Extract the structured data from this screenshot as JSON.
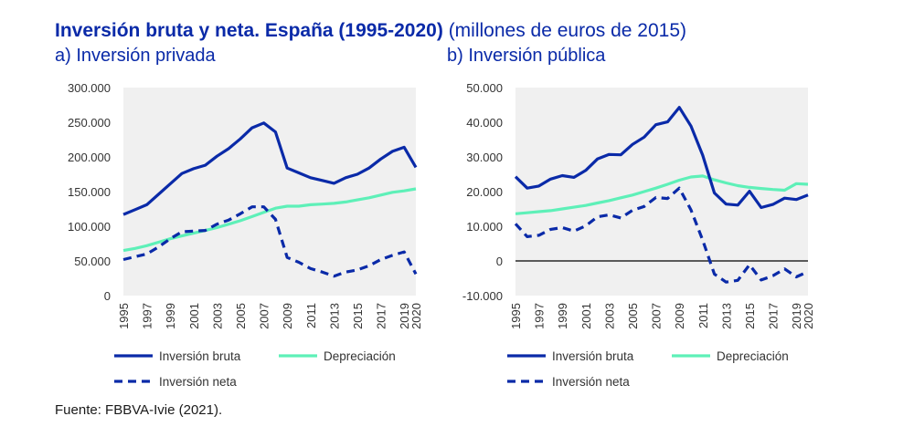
{
  "header": {
    "title": "Inversión bruta y neta. España (1995-2020)",
    "units": "(millones de euros de 2015)"
  },
  "source": "Fuente: FBBVA-Ivie (2021).",
  "colors": {
    "gross": "#0a2aa8",
    "depreciation": "#5ef0b8",
    "net": "#0a2aa8",
    "title": "#0a2aa8",
    "plot_bg": "#f0f0f0"
  },
  "chart_data": [
    {
      "type": "line",
      "subtitle": "a) Inversión privada",
      "x": [
        1995,
        1996,
        1997,
        1998,
        1999,
        2000,
        2001,
        2002,
        2003,
        2004,
        2005,
        2006,
        2007,
        2008,
        2009,
        2010,
        2011,
        2012,
        2013,
        2014,
        2015,
        2016,
        2017,
        2018,
        2019,
        2020
      ],
      "xticks": [
        "1995",
        "1997",
        "1999",
        "2001",
        "2003",
        "2005",
        "2007",
        "2009",
        "2011",
        "2013",
        "2015",
        "2017",
        "2019",
        "2020"
      ],
      "ylim": [
        0,
        300000
      ],
      "yticks": [
        0,
        50000,
        100000,
        150000,
        200000,
        250000,
        300000
      ],
      "ytick_labels": [
        "0",
        "50.000",
        "100.000",
        "150.000",
        "200.000",
        "250.000",
        "300.000"
      ],
      "grid": false,
      "legend": "bottom",
      "series": [
        {
          "name": "Inversión bruta",
          "style": "solid",
          "values": [
            117000,
            124000,
            131000,
            146000,
            161000,
            176000,
            183000,
            188000,
            201000,
            212000,
            226000,
            242000,
            249000,
            236000,
            184000,
            177000,
            170000,
            166000,
            162000,
            170000,
            175000,
            184000,
            197000,
            208000,
            214000,
            185000
          ]
        },
        {
          "name": "Depreciación",
          "style": "solid",
          "values": [
            65000,
            68000,
            72000,
            77000,
            82000,
            86000,
            90000,
            94000,
            98000,
            103000,
            108000,
            114000,
            120000,
            126000,
            129000,
            129000,
            131000,
            132000,
            133000,
            135000,
            138000,
            141000,
            145000,
            149000,
            151000,
            154000
          ]
        },
        {
          "name": "Inversión neta",
          "style": "dashed",
          "values": [
            52000,
            56000,
            60000,
            70000,
            82000,
            92000,
            93000,
            94000,
            103000,
            109000,
            118000,
            128000,
            128000,
            110000,
            55000,
            48000,
            39000,
            34000,
            28000,
            34000,
            37000,
            43000,
            52000,
            58000,
            63000,
            31000
          ]
        }
      ]
    },
    {
      "type": "line",
      "subtitle": "b) Inversión pública",
      "x": [
        1995,
        1996,
        1997,
        1998,
        1999,
        2000,
        2001,
        2002,
        2003,
        2004,
        2005,
        2006,
        2007,
        2008,
        2009,
        2010,
        2011,
        2012,
        2013,
        2014,
        2015,
        2016,
        2017,
        2018,
        2019,
        2020
      ],
      "xticks": [
        "1995",
        "1997",
        "1999",
        "2001",
        "2003",
        "2005",
        "2007",
        "2009",
        "2011",
        "2013",
        "2015",
        "2017",
        "2019",
        "2020"
      ],
      "ylim": [
        -10000,
        50000
      ],
      "yticks": [
        -10000,
        0,
        10000,
        20000,
        30000,
        40000,
        50000
      ],
      "ytick_labels": [
        "-10.000",
        "0",
        "10.000",
        "20.000",
        "30.000",
        "40.000",
        "50.000"
      ],
      "zero_line": true,
      "grid": false,
      "legend": "bottom",
      "series": [
        {
          "name": "Inversión bruta",
          "style": "solid",
          "values": [
            24300,
            21000,
            21600,
            23600,
            24600,
            24100,
            26100,
            29400,
            30700,
            30600,
            33600,
            35700,
            39300,
            40100,
            44300,
            38900,
            30500,
            19600,
            16400,
            16100,
            20100,
            15400,
            16300,
            18100,
            17700,
            19000
          ]
        },
        {
          "name": "Depreciación",
          "style": "solid",
          "values": [
            13600,
            13900,
            14200,
            14500,
            15000,
            15500,
            16000,
            16700,
            17400,
            18200,
            19000,
            20000,
            21000,
            22100,
            23300,
            24200,
            24500,
            23400,
            22500,
            21700,
            21200,
            20900,
            20600,
            20400,
            22300,
            22100
          ]
        },
        {
          "name": "Inversión neta",
          "style": "dashed",
          "values": [
            10700,
            7000,
            7400,
            9100,
            9600,
            8600,
            10100,
            12700,
            13300,
            12400,
            14600,
            15700,
            18300,
            18000,
            21000,
            14700,
            6000,
            -3800,
            -6100,
            -5600,
            -1100,
            -5500,
            -4300,
            -2300,
            -4600,
            -3100
          ]
        }
      ]
    }
  ]
}
